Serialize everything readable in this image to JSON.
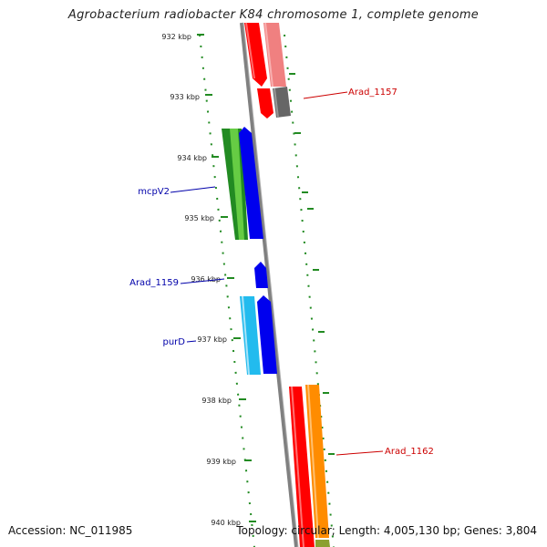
{
  "title": "Agrobacterium radiobacter K84 chromosome 1, complete genome",
  "footer": {
    "accession": "Accession: NC_011985",
    "topology": "Topology: circular; Length: 4,005,130 bp; Genes: 3,804"
  },
  "scale_labels": [
    "932 kbp",
    "933 kbp",
    "934 kbp",
    "935 kbp",
    "936 kbp",
    "937 kbp",
    "938 kbp",
    "939 kbp",
    "940 kbp"
  ],
  "gene_labels": [
    {
      "text": "Arad_1157",
      "color": "#cc0000"
    },
    {
      "text": "mcpV2",
      "color": "#0000aa"
    },
    {
      "text": "Arad_1159",
      "color": "#0000aa"
    },
    {
      "text": "purD",
      "color": "#0000aa"
    },
    {
      "text": "Arad_1162",
      "color": "#cc0000"
    }
  ],
  "colors": {
    "backbone": "#808080",
    "ticks": "#228b22",
    "red": "#ff0000",
    "pink": "#f08080",
    "gray": "#666666",
    "green": "#228b22",
    "lightgreen": "#66cc44",
    "blue": "#0000ee",
    "cyan": "#22bbee",
    "orange": "#ff8c00",
    "olive": "#8aa030"
  }
}
